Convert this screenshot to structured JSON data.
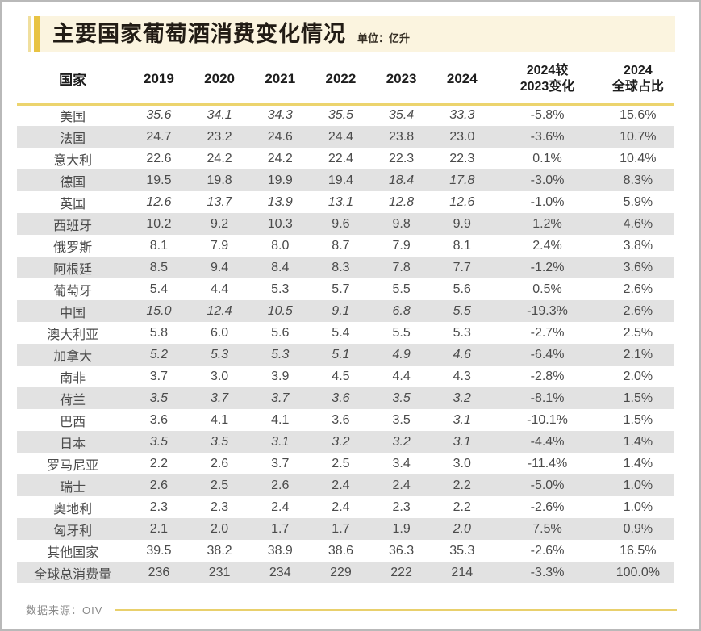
{
  "header": {
    "title": "主要国家葡萄酒消费变化情况",
    "unit_label": "单位：亿升"
  },
  "footer": {
    "source_label": "数据来源：OIV"
  },
  "colors": {
    "accent_gold": "#e8c343",
    "accent_light_gold": "#f0df9e",
    "title_band_bg": "#fbf4df",
    "separator_yellow": "#ecd46e",
    "row_alt_bg": "#e2e2e2",
    "title_text": "#221c15",
    "body_text": "#4b4b4b",
    "source_text": "#8a8a8a",
    "page_border": "#b9b9b9"
  },
  "chart_data": {
    "type": "table",
    "title": "主要国家葡萄酒消费变化情况",
    "unit": "亿升",
    "source": "数据来源：OIV",
    "country_column_header": "国家",
    "year_columns": [
      "2019",
      "2020",
      "2021",
      "2022",
      "2023",
      "2024"
    ],
    "change_column_header": [
      "2024较",
      "2023变化"
    ],
    "share_column_header": [
      "2024",
      "全球占比"
    ],
    "rows": [
      {
        "country": "美国",
        "values": [
          "35.6",
          "34.1",
          "34.3",
          "35.5",
          "35.4",
          "33.3"
        ],
        "italics": [
          1,
          1,
          1,
          1,
          1,
          1
        ],
        "change": "-5.8%",
        "share": "15.6%"
      },
      {
        "country": "法国",
        "values": [
          "24.7",
          "23.2",
          "24.6",
          "24.4",
          "23.8",
          "23.0"
        ],
        "italics": [
          0,
          0,
          0,
          0,
          0,
          0
        ],
        "change": "-3.6%",
        "share": "10.7%"
      },
      {
        "country": "意大利",
        "values": [
          "22.6",
          "24.2",
          "24.2",
          "22.4",
          "22.3",
          "22.3"
        ],
        "italics": [
          0,
          0,
          0,
          0,
          0,
          0
        ],
        "change": "0.1%",
        "share": "10.4%"
      },
      {
        "country": "德国",
        "values": [
          "19.5",
          "19.8",
          "19.9",
          "19.4",
          "18.4",
          "17.8"
        ],
        "italics": [
          0,
          0,
          0,
          0,
          1,
          1
        ],
        "change": "-3.0%",
        "share": "8.3%"
      },
      {
        "country": "英国",
        "values": [
          "12.6",
          "13.7",
          "13.9",
          "13.1",
          "12.8",
          "12.6"
        ],
        "italics": [
          1,
          1,
          1,
          1,
          1,
          1
        ],
        "change": "-1.0%",
        "share": "5.9%"
      },
      {
        "country": "西班牙",
        "values": [
          "10.2",
          "9.2",
          "10.3",
          "9.6",
          "9.8",
          "9.9"
        ],
        "italics": [
          0,
          0,
          0,
          0,
          0,
          0
        ],
        "change": "1.2%",
        "share": "4.6%"
      },
      {
        "country": "俄罗斯",
        "values": [
          "8.1",
          "7.9",
          "8.0",
          "8.7",
          "7.9",
          "8.1"
        ],
        "italics": [
          0,
          0,
          0,
          0,
          0,
          0
        ],
        "change": "2.4%",
        "share": "3.8%"
      },
      {
        "country": "阿根廷",
        "values": [
          "8.5",
          "9.4",
          "8.4",
          "8.3",
          "7.8",
          "7.7"
        ],
        "italics": [
          0,
          0,
          0,
          0,
          0,
          0
        ],
        "change": "-1.2%",
        "share": "3.6%"
      },
      {
        "country": "葡萄牙",
        "values": [
          "5.4",
          "4.4",
          "5.3",
          "5.7",
          "5.5",
          "5.6"
        ],
        "italics": [
          0,
          0,
          0,
          0,
          0,
          0
        ],
        "change": "0.5%",
        "share": "2.6%"
      },
      {
        "country": "中国",
        "values": [
          "15.0",
          "12.4",
          "10.5",
          "9.1",
          "6.8",
          "5.5"
        ],
        "italics": [
          1,
          1,
          1,
          1,
          1,
          1
        ],
        "change": "-19.3%",
        "share": "2.6%"
      },
      {
        "country": "澳大利亚",
        "values": [
          "5.8",
          "6.0",
          "5.6",
          "5.4",
          "5.5",
          "5.3"
        ],
        "italics": [
          0,
          0,
          0,
          0,
          0,
          0
        ],
        "change": "-2.7%",
        "share": "2.5%"
      },
      {
        "country": "加拿大",
        "values": [
          "5.2",
          "5.3",
          "5.3",
          "5.1",
          "4.9",
          "4.6"
        ],
        "italics": [
          1,
          1,
          1,
          1,
          1,
          1
        ],
        "change": "-6.4%",
        "share": "2.1%"
      },
      {
        "country": "南非",
        "values": [
          "3.7",
          "3.0",
          "3.9",
          "4.5",
          "4.4",
          "4.3"
        ],
        "italics": [
          0,
          0,
          0,
          0,
          0,
          0
        ],
        "change": "-2.8%",
        "share": "2.0%"
      },
      {
        "country": "荷兰",
        "values": [
          "3.5",
          "3.7",
          "3.7",
          "3.6",
          "3.5",
          "3.2"
        ],
        "italics": [
          1,
          1,
          1,
          1,
          1,
          1
        ],
        "change": "-8.1%",
        "share": "1.5%"
      },
      {
        "country": "巴西",
        "values": [
          "3.6",
          "4.1",
          "4.1",
          "3.6",
          "3.5",
          "3.1"
        ],
        "italics": [
          0,
          0,
          0,
          0,
          0,
          1
        ],
        "change": "-10.1%",
        "share": "1.5%"
      },
      {
        "country": "日本",
        "values": [
          "3.5",
          "3.5",
          "3.1",
          "3.2",
          "3.2",
          "3.1"
        ],
        "italics": [
          1,
          1,
          1,
          1,
          1,
          1
        ],
        "change": "-4.4%",
        "share": "1.4%"
      },
      {
        "country": "罗马尼亚",
        "values": [
          "2.2",
          "2.6",
          "3.7",
          "2.5",
          "3.4",
          "3.0"
        ],
        "italics": [
          0,
          0,
          0,
          0,
          0,
          0
        ],
        "change": "-11.4%",
        "share": "1.4%"
      },
      {
        "country": "瑞士",
        "values": [
          "2.6",
          "2.5",
          "2.6",
          "2.4",
          "2.4",
          "2.2"
        ],
        "italics": [
          0,
          0,
          0,
          0,
          0,
          0
        ],
        "change": "-5.0%",
        "share": "1.0%"
      },
      {
        "country": "奥地利",
        "values": [
          "2.3",
          "2.3",
          "2.4",
          "2.4",
          "2.3",
          "2.2"
        ],
        "italics": [
          0,
          0,
          0,
          0,
          0,
          0
        ],
        "change": "-2.6%",
        "share": "1.0%"
      },
      {
        "country": "匈牙利",
        "values": [
          "2.1",
          "2.0",
          "1.7",
          "1.7",
          "1.9",
          "2.0"
        ],
        "italics": [
          0,
          0,
          0,
          0,
          0,
          1
        ],
        "change": "7.5%",
        "share": "0.9%"
      },
      {
        "country": "其他国家",
        "values": [
          "39.5",
          "38.2",
          "38.9",
          "38.6",
          "36.3",
          "35.3"
        ],
        "italics": [
          0,
          0,
          0,
          0,
          0,
          0
        ],
        "change": "-2.6%",
        "share": "16.5%"
      },
      {
        "country": "全球总消费量",
        "values": [
          "236",
          "231",
          "234",
          "229",
          "222",
          "214"
        ],
        "italics": [
          0,
          0,
          0,
          0,
          0,
          0
        ],
        "change": "-3.3%",
        "share": "100.0%"
      }
    ]
  }
}
